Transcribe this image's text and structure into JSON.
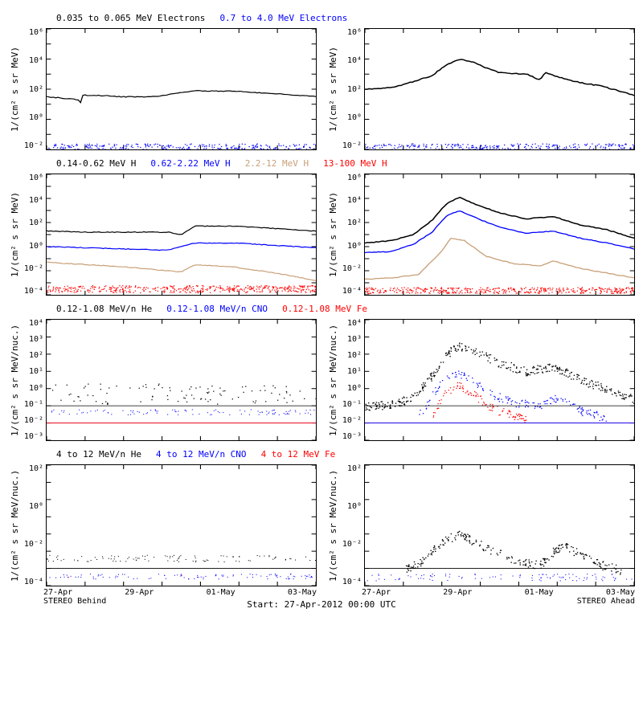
{
  "global": {
    "start_label": "Start: 27-Apr-2012 00:00 UTC",
    "left_sub": "STEREO Behind",
    "right_sub": "STEREO Ahead",
    "x_ticks": [
      "27-Apr",
      "29-Apr",
      "01-May",
      "03-May"
    ],
    "colors": {
      "black": "#000000",
      "blue": "#0000ff",
      "tan": "#c8a078",
      "red": "#ff0000",
      "bg": "#ffffff",
      "axis": "#000000"
    },
    "font_family": "monospace",
    "font_size_pt": 9
  },
  "rows": [
    {
      "legend": [
        {
          "text": "0.035 to 0.065 MeV Electrons",
          "color": "#000000"
        },
        {
          "text": "0.7 to 4.0 MeV Electrons",
          "color": "#0000ff"
        }
      ],
      "ylabel": "1/(cm² s sr MeV)",
      "ylim": [
        -2,
        6
      ],
      "yticks": [
        "10⁶",
        "10⁴",
        "10²",
        "10⁰",
        "10⁻²"
      ],
      "panels": [
        {
          "series": [
            {
              "color": "#000000",
              "type": "line",
              "width": 1.2,
              "data": [
                [
                  0,
                  1.5
                ],
                [
                  0.12,
                  1.3
                ],
                [
                  0.125,
                  1.0
                ],
                [
                  0.13,
                  1.6
                ],
                [
                  0.25,
                  1.55
                ],
                [
                  0.26,
                  1.5
                ],
                [
                  0.4,
                  1.5
                ],
                [
                  0.55,
                  1.9
                ],
                [
                  0.7,
                  1.85
                ],
                [
                  0.85,
                  1.7
                ],
                [
                  1.0,
                  1.5
                ]
              ]
            },
            {
              "color": "#0000ff",
              "type": "band",
              "center": -1.9,
              "spread": 0.3
            }
          ]
        },
        {
          "series": [
            {
              "color": "#000000",
              "type": "line",
              "width": 1.5,
              "data": [
                [
                  0,
                  2.0
                ],
                [
                  0.1,
                  2.1
                ],
                [
                  0.18,
                  2.5
                ],
                [
                  0.25,
                  2.9
                ],
                [
                  0.3,
                  3.6
                ],
                [
                  0.35,
                  4.0
                ],
                [
                  0.4,
                  3.8
                ],
                [
                  0.45,
                  3.4
                ],
                [
                  0.5,
                  3.1
                ],
                [
                  0.6,
                  3.0
                ],
                [
                  0.65,
                  2.6
                ],
                [
                  0.67,
                  3.1
                ],
                [
                  0.7,
                  2.9
                ],
                [
                  0.78,
                  2.5
                ],
                [
                  0.88,
                  2.2
                ],
                [
                  1.0,
                  1.6
                ]
              ]
            },
            {
              "color": "#0000ff",
              "type": "band",
              "center": -1.9,
              "spread": 0.3
            }
          ]
        }
      ]
    },
    {
      "legend": [
        {
          "text": "0.14-0.62 MeV H",
          "color": "#000000"
        },
        {
          "text": "0.62-2.22 MeV H",
          "color": "#0000ff"
        },
        {
          "text": "2.2-12 MeV H",
          "color": "#c8a078"
        },
        {
          "text": "13-100 MeV H",
          "color": "#ff0000"
        }
      ],
      "ylabel": "1/(cm² s sr MeV)",
      "ylim": [
        -4,
        6
      ],
      "yticks": [
        "10⁶",
        "10⁴",
        "10²",
        "10⁰",
        "10⁻²",
        "10⁻⁴"
      ],
      "panels": [
        {
          "series": [
            {
              "color": "#000000",
              "type": "line",
              "width": 1.2,
              "data": [
                [
                  0,
                  1.3
                ],
                [
                  0.15,
                  1.2
                ],
                [
                  0.3,
                  1.2
                ],
                [
                  0.45,
                  1.2
                ],
                [
                  0.5,
                  1.0
                ],
                [
                  0.55,
                  1.7
                ],
                [
                  0.7,
                  1.7
                ],
                [
                  0.85,
                  1.5
                ],
                [
                  1.0,
                  1.3
                ]
              ]
            },
            {
              "color": "#0000ff",
              "type": "line",
              "width": 1.2,
              "data": [
                [
                  0,
                  0.0
                ],
                [
                  0.15,
                  -0.1
                ],
                [
                  0.3,
                  -0.2
                ],
                [
                  0.45,
                  -0.3
                ],
                [
                  0.55,
                  0.3
                ],
                [
                  0.7,
                  0.3
                ],
                [
                  0.85,
                  0.1
                ],
                [
                  1.0,
                  -0.1
                ]
              ]
            },
            {
              "color": "#c8a078",
              "type": "line",
              "width": 1.2,
              "data": [
                [
                  0,
                  -1.3
                ],
                [
                  0.15,
                  -1.5
                ],
                [
                  0.3,
                  -1.7
                ],
                [
                  0.45,
                  -2.0
                ],
                [
                  0.5,
                  -2.1
                ],
                [
                  0.55,
                  -1.5
                ],
                [
                  0.7,
                  -1.7
                ],
                [
                  0.85,
                  -2.2
                ],
                [
                  1.0,
                  -2.8
                ]
              ]
            },
            {
              "color": "#ff0000",
              "type": "band",
              "center": -3.5,
              "spread": 0.3
            }
          ]
        },
        {
          "series": [
            {
              "color": "#000000",
              "type": "line",
              "width": 1.5,
              "data": [
                [
                  0,
                  0.3
                ],
                [
                  0.1,
                  0.5
                ],
                [
                  0.18,
                  1.0
                ],
                [
                  0.25,
                  2.2
                ],
                [
                  0.3,
                  3.5
                ],
                [
                  0.35,
                  4.1
                ],
                [
                  0.4,
                  3.6
                ],
                [
                  0.5,
                  2.8
                ],
                [
                  0.6,
                  2.3
                ],
                [
                  0.7,
                  2.5
                ],
                [
                  0.8,
                  1.8
                ],
                [
                  0.9,
                  1.4
                ],
                [
                  1.0,
                  0.7
                ]
              ]
            },
            {
              "color": "#0000ff",
              "type": "line",
              "width": 1.3,
              "data": [
                [
                  0,
                  -0.5
                ],
                [
                  0.1,
                  -0.4
                ],
                [
                  0.18,
                  0.2
                ],
                [
                  0.25,
                  1.2
                ],
                [
                  0.3,
                  2.5
                ],
                [
                  0.35,
                  3.0
                ],
                [
                  0.4,
                  2.5
                ],
                [
                  0.5,
                  1.6
                ],
                [
                  0.6,
                  1.1
                ],
                [
                  0.7,
                  1.3
                ],
                [
                  0.8,
                  0.7
                ],
                [
                  0.9,
                  0.3
                ],
                [
                  1.0,
                  -0.2
                ]
              ]
            },
            {
              "color": "#c8a078",
              "type": "line",
              "width": 1.3,
              "data": [
                [
                  0,
                  -2.7
                ],
                [
                  0.1,
                  -2.6
                ],
                [
                  0.2,
                  -2.3
                ],
                [
                  0.28,
                  -0.5
                ],
                [
                  0.32,
                  0.7
                ],
                [
                  0.37,
                  0.5
                ],
                [
                  0.45,
                  -0.8
                ],
                [
                  0.55,
                  -1.4
                ],
                [
                  0.65,
                  -1.6
                ],
                [
                  0.7,
                  -1.2
                ],
                [
                  0.8,
                  -1.8
                ],
                [
                  0.9,
                  -2.2
                ],
                [
                  1.0,
                  -2.6
                ]
              ]
            },
            {
              "color": "#ff0000",
              "type": "band",
              "center": -3.6,
              "spread": 0.25
            }
          ]
        }
      ]
    },
    {
      "legend": [
        {
          "text": "0.12-1.08 MeV/n He",
          "color": "#000000"
        },
        {
          "text": "0.12-1.08 MeV/n CNO",
          "color": "#0000ff"
        },
        {
          "text": "0.12-1.08 MeV Fe",
          "color": "#ff0000"
        }
      ],
      "ylabel": "1/(cm² s sr MeV/nuc.)",
      "ylim": [
        -3,
        4
      ],
      "yticks": [
        "10⁴",
        "10³",
        "10²",
        "10¹",
        "10⁰",
        "10⁻¹",
        "10⁻²",
        "10⁻³"
      ],
      "panels": [
        {
          "series": [
            {
              "color": "#000000",
              "type": "scatter",
              "size": 1.2,
              "data_band": {
                "lo": -0.9,
                "hi": 0.3,
                "density": 220
              }
            },
            {
              "color": "#000000",
              "type": "hline",
              "y": -1.0
            },
            {
              "color": "#0000ff",
              "type": "hline",
              "y": -2.0
            },
            {
              "color": "#ff0000",
              "type": "hline",
              "y": -2.0
            },
            {
              "color": "#0000ff",
              "type": "scatter",
              "size": 1,
              "data_band": {
                "lo": -1.5,
                "hi": -1.2,
                "density": 30
              }
            }
          ]
        },
        {
          "series": [
            {
              "color": "#000000",
              "type": "scatter",
              "size": 1.3,
              "profile": [
                [
                  0,
                  -1.0
                ],
                [
                  0.1,
                  -0.9
                ],
                [
                  0.18,
                  -0.5
                ],
                [
                  0.25,
                  0.8
                ],
                [
                  0.3,
                  2.0
                ],
                [
                  0.35,
                  2.5
                ],
                [
                  0.4,
                  2.2
                ],
                [
                  0.5,
                  1.5
                ],
                [
                  0.6,
                  1.0
                ],
                [
                  0.7,
                  1.3
                ],
                [
                  0.8,
                  0.5
                ],
                [
                  0.9,
                  0.0
                ],
                [
                  1.0,
                  -0.6
                ]
              ],
              "spread": 0.25,
              "density": 380
            },
            {
              "color": "#0000ff",
              "type": "scatter",
              "size": 1.2,
              "profile": [
                [
                  0.2,
                  -1.5
                ],
                [
                  0.28,
                  0.3
                ],
                [
                  0.33,
                  0.9
                ],
                [
                  0.38,
                  0.7
                ],
                [
                  0.45,
                  -0.2
                ],
                [
                  0.55,
                  -0.8
                ],
                [
                  0.65,
                  -1.0
                ],
                [
                  0.72,
                  -0.5
                ],
                [
                  0.8,
                  -1.3
                ],
                [
                  0.9,
                  -1.7
                ]
              ],
              "spread": 0.25,
              "density": 180
            },
            {
              "color": "#ff0000",
              "type": "scatter",
              "size": 1.2,
              "profile": [
                [
                  0.25,
                  -1.5
                ],
                [
                  0.3,
                  -0.2
                ],
                [
                  0.35,
                  0.2
                ],
                [
                  0.4,
                  -0.3
                ],
                [
                  0.48,
                  -1.2
                ],
                [
                  0.6,
                  -1.8
                ]
              ],
              "spread": 0.25,
              "density": 110
            },
            {
              "color": "#000000",
              "type": "hline",
              "y": -1.0
            },
            {
              "color": "#ff0000",
              "type": "hline",
              "y": -2.0
            },
            {
              "color": "#0000ff",
              "type": "hline",
              "y": -2.0
            }
          ]
        }
      ]
    },
    {
      "legend": [
        {
          "text": "4 to 12 MeV/n He",
          "color": "#000000"
        },
        {
          "text": "4 to 12 MeV/n CNO",
          "color": "#0000ff"
        },
        {
          "text": "4 to 12 MeV Fe",
          "color": "#ff0000"
        }
      ],
      "ylabel": "1/(cm² s sr MeV/nuc.)",
      "ylim": [
        -5,
        2
      ],
      "yticks": [
        "10²",
        "10⁰",
        "10⁻²",
        "10⁻⁴"
      ],
      "panels": [
        {
          "show_xticks": true,
          "series": [
            {
              "color": "#000000",
              "type": "hline",
              "y": -4.0
            },
            {
              "color": "#000000",
              "type": "scatter",
              "size": 1,
              "data_band": {
                "lo": -3.6,
                "hi": -3.2,
                "density": 18
              }
            },
            {
              "color": "#0000ff",
              "type": "scatter",
              "size": 1,
              "data_band": {
                "lo": -4.6,
                "hi": -4.3,
                "density": 10
              }
            },
            {
              "color": "#ff0000",
              "type": "scatter",
              "size": 1,
              "data_points": [
                [
                  0.08,
                  -4.5
                ],
                [
                  0.5,
                  -4.4
                ]
              ]
            }
          ]
        },
        {
          "show_xticks": true,
          "series": [
            {
              "color": "#000000",
              "type": "scatter",
              "size": 1.3,
              "profile": [
                [
                  0.15,
                  -4.0
                ],
                [
                  0.22,
                  -3.5
                ],
                [
                  0.28,
                  -2.5
                ],
                [
                  0.32,
                  -2.2
                ],
                [
                  0.36,
                  -2.0
                ],
                [
                  0.4,
                  -2.4
                ],
                [
                  0.48,
                  -3.0
                ],
                [
                  0.56,
                  -3.5
                ],
                [
                  0.65,
                  -3.8
                ],
                [
                  0.7,
                  -3.0
                ],
                [
                  0.74,
                  -2.7
                ],
                [
                  0.8,
                  -3.2
                ],
                [
                  0.88,
                  -3.8
                ],
                [
                  0.95,
                  -4.1
                ]
              ],
              "spread": 0.25,
              "density": 260
            },
            {
              "color": "#0000ff",
              "type": "scatter",
              "size": 1,
              "data_band": {
                "lo": -4.7,
                "hi": -4.3,
                "density": 28
              }
            },
            {
              "color": "#000000",
              "type": "hline",
              "y": -4.0
            }
          ]
        }
      ]
    }
  ]
}
